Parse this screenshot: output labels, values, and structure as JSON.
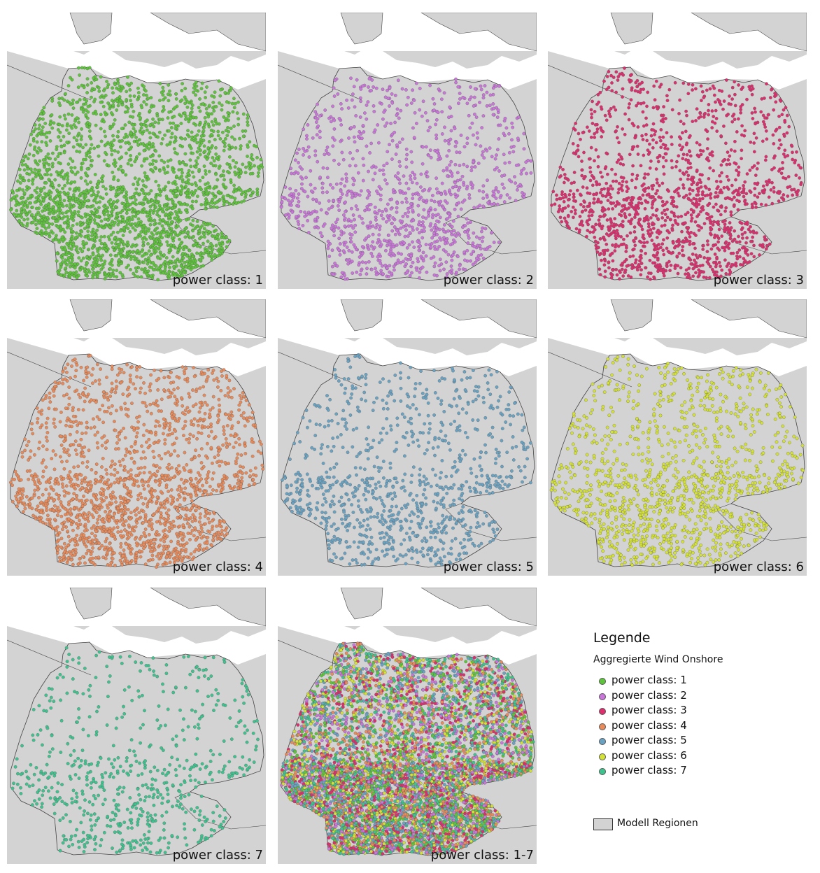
{
  "panels": [
    {
      "label": "power class: 1",
      "colors": [
        "#5ec43b"
      ],
      "density": 2600
    },
    {
      "label": "power class: 2",
      "colors": [
        "#c975d9"
      ],
      "density": 1200
    },
    {
      "label": "power class: 3",
      "colors": [
        "#dd2e6e"
      ],
      "density": 1500
    },
    {
      "label": "power class: 4",
      "colors": [
        "#e88a5a"
      ],
      "density": 1900
    },
    {
      "label": "power class: 5",
      "colors": [
        "#6aa2c2"
      ],
      "density": 1000
    },
    {
      "label": "power class: 6",
      "colors": [
        "#d4e236"
      ],
      "density": 1300
    },
    {
      "label": "power class: 7",
      "colors": [
        "#3ec38f"
      ],
      "density": 650
    },
    {
      "label": "power class: 1-7",
      "colors": [
        "#5ec43b",
        "#c975d9",
        "#dd2e6e",
        "#e88a5a",
        "#6aa2c2",
        "#d4e236",
        "#3ec38f"
      ],
      "density": 6500
    }
  ],
  "legend": {
    "title": "Legende",
    "subtitle": "Aggregierte Wind Onshore",
    "items": [
      {
        "label": "power class: 1",
        "color": "#5ec43b"
      },
      {
        "label": "power class: 2",
        "color": "#c975d9"
      },
      {
        "label": "power class: 3",
        "color": "#dd2e6e"
      },
      {
        "label": "power class: 4",
        "color": "#e88a5a"
      },
      {
        "label": "power class: 5",
        "color": "#6aa2c2"
      },
      {
        "label": "power class: 6",
        "color": "#d4e236"
      },
      {
        "label": "power class: 7",
        "color": "#3ec38f"
      }
    ],
    "regions_label": "Modell Regionen"
  },
  "map_colors": {
    "land": "#d3d3d3",
    "water": "#ffffff",
    "border": "#444444"
  }
}
